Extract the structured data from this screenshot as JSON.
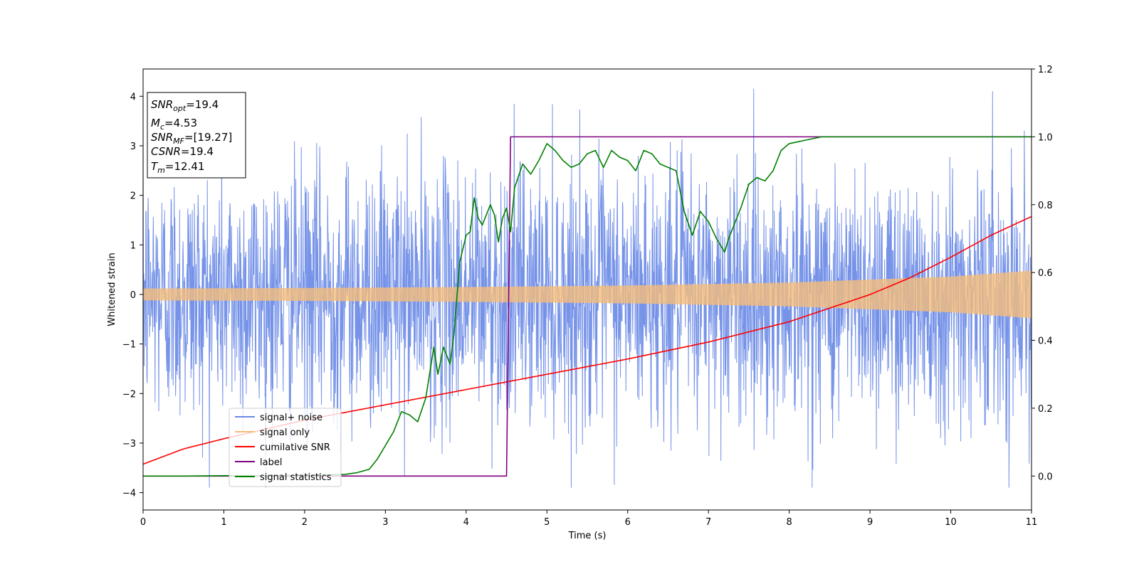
{
  "chart_data": {
    "type": "line",
    "xlabel": "Time (s)",
    "ylabel": "Whitened strain",
    "xlim": [
      0,
      11
    ],
    "ylim_left": [
      -4.35,
      4.55
    ],
    "ylim_right": [
      -0.1,
      1.2
    ],
    "x_ticks": [
      "0",
      "1",
      "2",
      "3",
      "4",
      "5",
      "6",
      "7",
      "8",
      "9",
      "10",
      "11"
    ],
    "y_ticks_left": [
      "−4",
      "−3",
      "−2",
      "−1",
      "0",
      "1",
      "2",
      "3",
      "4"
    ],
    "y_ticks_right": [
      "0.0",
      "0.2",
      "0.4",
      "0.6",
      "0.8",
      "1.0",
      "1.2"
    ],
    "grid": false,
    "legend_position": "lower-left",
    "annotation": {
      "lines": [
        {
          "base": "SNR",
          "sub": "opt",
          "value": "=19.4"
        },
        {
          "base": "M",
          "sub": "c",
          "value": "=4.53"
        },
        {
          "base": "SNR",
          "sub": "MF",
          "value": "=[19.27]"
        },
        {
          "base": "CSNR",
          "sub": "",
          "value": "=19.4"
        },
        {
          "base": "T",
          "sub": "m",
          "value": "=12.41"
        }
      ]
    },
    "series": [
      {
        "name": "signal+ noise",
        "axis": "left",
        "color": "#6a8ae6",
        "kind": "noise",
        "envelope": {
          "typical_min": -1.6,
          "typical_max": 1.6,
          "extreme_min": -3.9,
          "extreme_max": 4.15
        }
      },
      {
        "name": "signal only",
        "axis": "left",
        "color": "#f5bd7a",
        "kind": "chirp",
        "amplitude": {
          "x": [
            0,
            2,
            4,
            6,
            8,
            10,
            11
          ],
          "y": [
            0.12,
            0.13,
            0.15,
            0.18,
            0.24,
            0.36,
            0.48
          ]
        }
      },
      {
        "name": "cumilative SNR",
        "axis": "right",
        "color": "#ff0000",
        "x": [
          0,
          0.5,
          1,
          2,
          3,
          4,
          5,
          6,
          7,
          8,
          9,
          9.5,
          10,
          10.5,
          11
        ],
        "y": [
          0.035,
          0.08,
          0.11,
          0.165,
          0.21,
          0.255,
          0.3,
          0.345,
          0.395,
          0.455,
          0.535,
          0.585,
          0.645,
          0.71,
          0.765
        ]
      },
      {
        "name": "label",
        "axis": "right",
        "color": "#800080",
        "x": [
          0,
          4.5,
          4.55,
          11
        ],
        "y": [
          0,
          0,
          1,
          1
        ]
      },
      {
        "name": "signal statistics",
        "axis": "right",
        "color": "#008000",
        "x": [
          0,
          0.5,
          1,
          1.5,
          2,
          2.5,
          2.65,
          2.8,
          2.9,
          3.0,
          3.1,
          3.2,
          3.3,
          3.4,
          3.5,
          3.6,
          3.65,
          3.72,
          3.8,
          3.85,
          3.92,
          4.0,
          4.05,
          4.1,
          4.15,
          4.2,
          4.25,
          4.3,
          4.35,
          4.4,
          4.45,
          4.5,
          4.55,
          4.6,
          4.7,
          4.8,
          4.9,
          5.0,
          5.1,
          5.2,
          5.3,
          5.4,
          5.5,
          5.6,
          5.7,
          5.8,
          5.9,
          6.0,
          6.1,
          6.2,
          6.3,
          6.4,
          6.5,
          6.6,
          6.7,
          6.8,
          6.9,
          7.0,
          7.1,
          7.2,
          7.25,
          7.3,
          7.4,
          7.5,
          7.6,
          7.7,
          7.8,
          7.9,
          8.0,
          8.1,
          8.2,
          8.3,
          8.4,
          8.5,
          8.6,
          8.8,
          9.0,
          9.5,
          10,
          10.5,
          11
        ],
        "y": [
          0.0,
          0.0,
          0.001,
          0.001,
          0.002,
          0.005,
          0.01,
          0.02,
          0.05,
          0.09,
          0.13,
          0.19,
          0.18,
          0.16,
          0.23,
          0.38,
          0.3,
          0.38,
          0.33,
          0.42,
          0.63,
          0.71,
          0.72,
          0.82,
          0.76,
          0.74,
          0.77,
          0.8,
          0.77,
          0.69,
          0.76,
          0.79,
          0.72,
          0.85,
          0.92,
          0.89,
          0.93,
          0.98,
          0.96,
          0.93,
          0.91,
          0.92,
          0.95,
          0.96,
          0.91,
          0.96,
          0.94,
          0.93,
          0.9,
          0.96,
          0.95,
          0.92,
          0.91,
          0.9,
          0.78,
          0.71,
          0.78,
          0.75,
          0.7,
          0.66,
          0.7,
          0.73,
          0.79,
          0.86,
          0.88,
          0.87,
          0.9,
          0.96,
          0.98,
          0.985,
          0.99,
          0.995,
          1.0,
          1.0,
          1.0,
          1.0,
          1.0,
          1.0,
          1.0,
          1.0,
          1.0
        ]
      }
    ]
  }
}
